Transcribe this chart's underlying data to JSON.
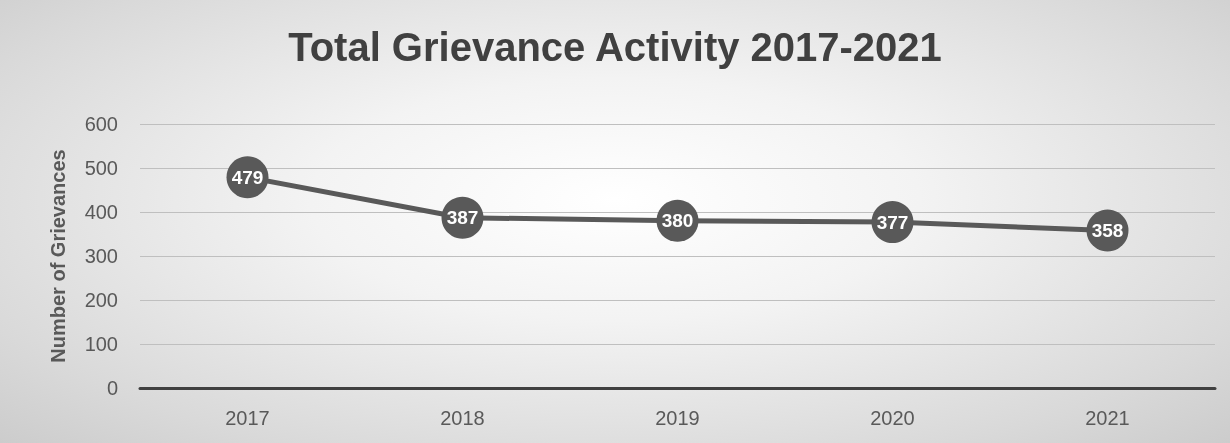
{
  "chart_data": {
    "type": "line",
    "title": "Total Grievance Activity 2017-2021",
    "ylabel": "Number of Grievances",
    "categories": [
      "2017",
      "2018",
      "2019",
      "2020",
      "2021"
    ],
    "values": [
      479,
      387,
      380,
      377,
      358
    ],
    "color": "#595959",
    "ylim": [
      0,
      600
    ],
    "yticks": [
      0,
      100,
      200,
      300,
      400,
      500,
      600
    ],
    "grid": "y",
    "marker": "circle",
    "line_style": "solid",
    "data_labels": true
  }
}
